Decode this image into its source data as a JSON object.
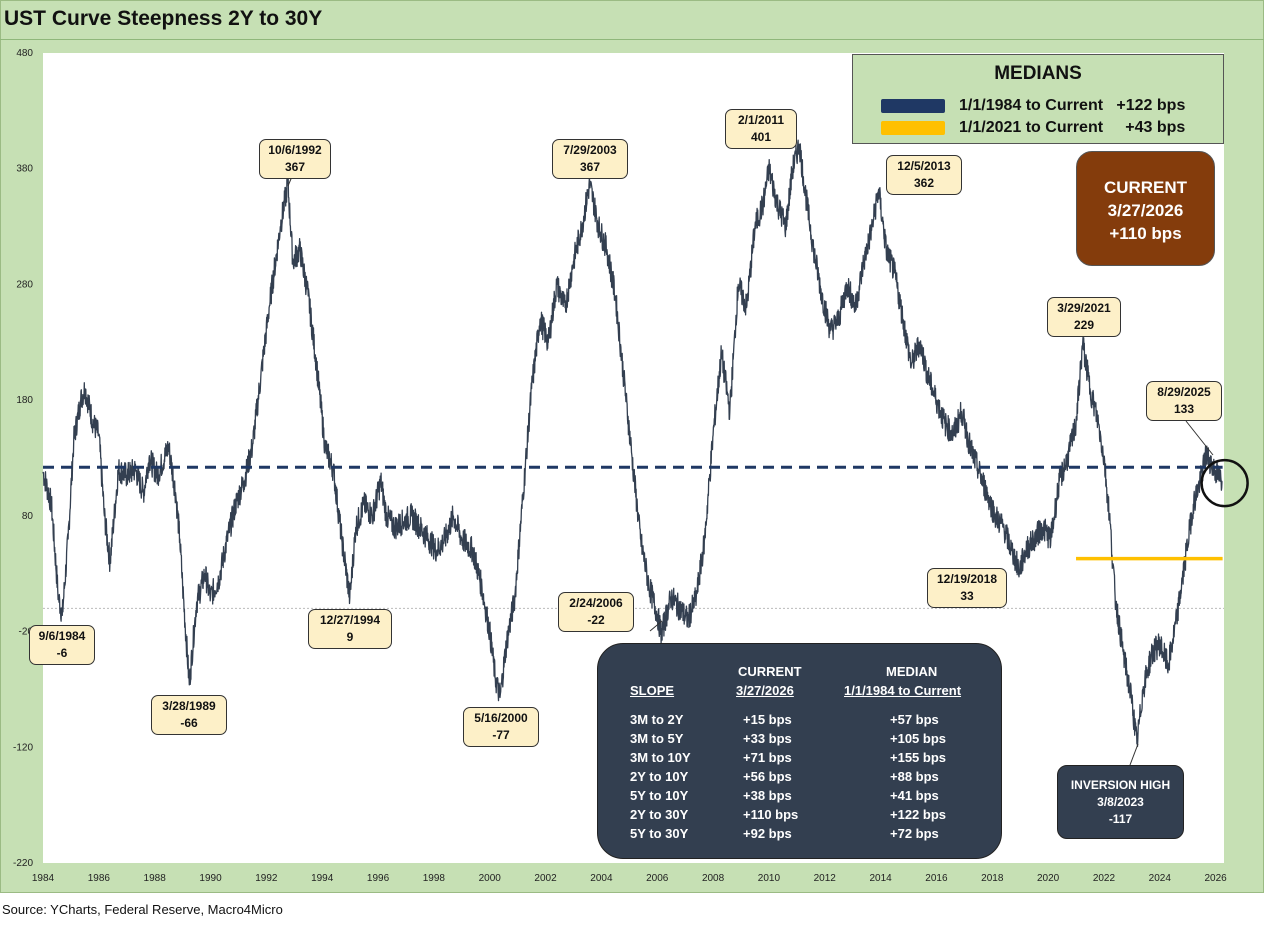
{
  "title": "UST Curve Steepness 2Y to 30Y",
  "source": "Source: YCharts, Federal Reserve, Macro4Micro",
  "colors": {
    "background": "#c6e0b4",
    "series": "#333f50",
    "median_full": "#1f3864",
    "median_recent": "#ffc000",
    "annotation_fill": "#fdf0c8",
    "current_box": "#843c0c",
    "table_box": "#333f50"
  },
  "medians_legend": {
    "title": "MEDIANS",
    "rows": [
      {
        "label": "1/1/1984 to Current",
        "value": "+122 bps",
        "color": "#1f3864"
      },
      {
        "label": "1/1/2021 to Current",
        "value": "+43 bps",
        "color": "#ffc000"
      }
    ]
  },
  "current_box": {
    "line1": "CURRENT",
    "line2": "3/27/2026",
    "line3": "+110 bps"
  },
  "inversion_box": {
    "line1": "INVERSION HIGH",
    "line2": "3/8/2023",
    "line3": "-117"
  },
  "slope_table": {
    "headers": {
      "col1": "SLOPE",
      "col2_top": "CURRENT",
      "col2_bottom": "3/27/2026",
      "col3_top": "MEDIAN",
      "col3_bottom": "1/1/1984 to Current"
    },
    "rows": [
      {
        "slope": "3M to 2Y",
        "current": "+15 bps",
        "median": "+57 bps"
      },
      {
        "slope": "3M to 5Y",
        "current": "+33 bps",
        "median": "+105 bps"
      },
      {
        "slope": "3M to 10Y",
        "current": "+71 bps",
        "median": "+155 bps"
      },
      {
        "slope": "2Y to 10Y",
        "current": "+56 bps",
        "median": "+88 bps"
      },
      {
        "slope": "5Y to 10Y",
        "current": "+38 bps",
        "median": "+41 bps"
      },
      {
        "slope": "2Y to 30Y",
        "current": "+110 bps",
        "median": "+122 bps"
      },
      {
        "slope": "5Y to 30Y",
        "current": "+92 bps",
        "median": "+72 bps"
      }
    ]
  },
  "annotations": [
    {
      "date": "9/6/1984",
      "value": "-6"
    },
    {
      "date": "3/28/1989",
      "value": "-66"
    },
    {
      "date": "10/6/1992",
      "value": "367"
    },
    {
      "date": "12/27/1994",
      "value": "9"
    },
    {
      "date": "5/16/2000",
      "value": "-77"
    },
    {
      "date": "7/29/2003",
      "value": "367"
    },
    {
      "date": "2/24/2006",
      "value": "-22"
    },
    {
      "date": "2/1/2011",
      "value": "401"
    },
    {
      "date": "12/5/2013",
      "value": "362"
    },
    {
      "date": "12/19/2018",
      "value": "33"
    },
    {
      "date": "3/29/2021",
      "value": "229"
    },
    {
      "date": "8/29/2025",
      "value": "133"
    }
  ],
  "chart_data": {
    "type": "line",
    "title": "UST Curve Steepness 2Y to 30Y",
    "xlabel": "",
    "ylabel": "",
    "xlim": [
      1984,
      2026.3
    ],
    "ylim": [
      -220,
      480
    ],
    "x_ticks": [
      "1984",
      "1986",
      "1988",
      "1990",
      "1992",
      "1994",
      "1996",
      "1998",
      "2000",
      "2002",
      "2004",
      "2006",
      "2008",
      "2010",
      "2012",
      "2014",
      "2016",
      "2018",
      "2020",
      "2022",
      "2024",
      "2026"
    ],
    "y_ticks": [
      -220,
      -120,
      -20,
      80,
      180,
      280,
      380,
      480
    ],
    "zero_line": 0,
    "medians": [
      {
        "name": "1/1/1984 to Current",
        "value": 122,
        "x_start": 1984,
        "x_end": 2026.25
      },
      {
        "name": "1/1/2021 to Current",
        "value": 43,
        "x_start": 2021.0,
        "x_end": 2026.25
      }
    ],
    "current": {
      "date": "3/27/2026",
      "value": 110
    },
    "series": [
      {
        "values": [
          [
            1984.0,
            118
          ],
          [
            1984.3,
            90
          ],
          [
            1984.55,
            10
          ],
          [
            1984.69,
            -6
          ],
          [
            1984.9,
            60
          ],
          [
            1985.1,
            145
          ],
          [
            1985.35,
            180
          ],
          [
            1985.5,
            190
          ],
          [
            1985.8,
            160
          ],
          [
            1986.0,
            150
          ],
          [
            1986.2,
            80
          ],
          [
            1986.4,
            40
          ],
          [
            1986.7,
            120
          ],
          [
            1987.0,
            115
          ],
          [
            1987.3,
            120
          ],
          [
            1987.6,
            100
          ],
          [
            1987.8,
            130
          ],
          [
            1988.1,
            115
          ],
          [
            1988.5,
            140
          ],
          [
            1988.75,
            100
          ],
          [
            1988.9,
            60
          ],
          [
            1989.0,
            20
          ],
          [
            1989.24,
            -66
          ],
          [
            1989.5,
            5
          ],
          [
            1989.8,
            30
          ],
          [
            1990.0,
            10
          ],
          [
            1990.3,
            25
          ],
          [
            1990.6,
            60
          ],
          [
            1990.9,
            90
          ],
          [
            1991.2,
            110
          ],
          [
            1991.5,
            140
          ],
          [
            1991.8,
            200
          ],
          [
            1992.1,
            260
          ],
          [
            1992.5,
            330
          ],
          [
            1992.77,
            367
          ],
          [
            1992.95,
            300
          ],
          [
            1993.2,
            310
          ],
          [
            1993.5,
            270
          ],
          [
            1993.8,
            210
          ],
          [
            1994.1,
            140
          ],
          [
            1994.4,
            120
          ],
          [
            1994.7,
            60
          ],
          [
            1994.99,
            9
          ],
          [
            1995.2,
            70
          ],
          [
            1995.5,
            90
          ],
          [
            1995.8,
            80
          ],
          [
            1996.1,
            110
          ],
          [
            1996.3,
            80
          ],
          [
            1996.6,
            70
          ],
          [
            1996.9,
            75
          ],
          [
            1997.2,
            80
          ],
          [
            1997.5,
            70
          ],
          [
            1997.8,
            60
          ],
          [
            1998.1,
            50
          ],
          [
            1998.4,
            60
          ],
          [
            1998.7,
            80
          ],
          [
            1999.0,
            60
          ],
          [
            1999.4,
            50
          ],
          [
            1999.7,
            20
          ],
          [
            2000.0,
            -20
          ],
          [
            2000.2,
            -60
          ],
          [
            2000.37,
            -77
          ],
          [
            2000.6,
            -30
          ],
          [
            2000.9,
            10
          ],
          [
            2001.2,
            100
          ],
          [
            2001.5,
            190
          ],
          [
            2001.8,
            250
          ],
          [
            2002.1,
            230
          ],
          [
            2002.4,
            280
          ],
          [
            2002.7,
            260
          ],
          [
            2003.0,
            300
          ],
          [
            2003.3,
            330
          ],
          [
            2003.58,
            367
          ],
          [
            2003.9,
            330
          ],
          [
            2004.2,
            310
          ],
          [
            2004.5,
            270
          ],
          [
            2004.8,
            200
          ],
          [
            2005.1,
            130
          ],
          [
            2005.4,
            60
          ],
          [
            2005.7,
            20
          ],
          [
            2006.0,
            -5
          ],
          [
            2006.15,
            -22
          ],
          [
            2006.5,
            10
          ],
          [
            2006.8,
            0
          ],
          [
            2007.1,
            -10
          ],
          [
            2007.4,
            10
          ],
          [
            2007.7,
            60
          ],
          [
            2008.0,
            150
          ],
          [
            2008.3,
            220
          ],
          [
            2008.6,
            170
          ],
          [
            2008.9,
            280
          ],
          [
            2009.2,
            260
          ],
          [
            2009.5,
            330
          ],
          [
            2009.8,
            350
          ],
          [
            2010.0,
            380
          ],
          [
            2010.3,
            350
          ],
          [
            2010.6,
            330
          ],
          [
            2010.85,
            380
          ],
          [
            2011.09,
            401
          ],
          [
            2011.3,
            360
          ],
          [
            2011.6,
            310
          ],
          [
            2011.9,
            270
          ],
          [
            2012.2,
            240
          ],
          [
            2012.5,
            250
          ],
          [
            2012.8,
            280
          ],
          [
            2013.1,
            260
          ],
          [
            2013.4,
            300
          ],
          [
            2013.7,
            330
          ],
          [
            2013.93,
            362
          ],
          [
            2014.2,
            310
          ],
          [
            2014.5,
            290
          ],
          [
            2014.8,
            250
          ],
          [
            2015.1,
            210
          ],
          [
            2015.4,
            230
          ],
          [
            2015.7,
            200
          ],
          [
            2016.0,
            180
          ],
          [
            2016.3,
            160
          ],
          [
            2016.6,
            150
          ],
          [
            2016.9,
            170
          ],
          [
            2017.2,
            140
          ],
          [
            2017.5,
            120
          ],
          [
            2017.8,
            100
          ],
          [
            2018.1,
            80
          ],
          [
            2018.4,
            70
          ],
          [
            2018.7,
            50
          ],
          [
            2018.97,
            33
          ],
          [
            2019.2,
            50
          ],
          [
            2019.5,
            60
          ],
          [
            2019.8,
            70
          ],
          [
            2020.1,
            60
          ],
          [
            2020.4,
            110
          ],
          [
            2020.7,
            130
          ],
          [
            2021.0,
            160
          ],
          [
            2021.24,
            229
          ],
          [
            2021.5,
            190
          ],
          [
            2021.8,
            160
          ],
          [
            2022.0,
            130
          ],
          [
            2022.2,
            80
          ],
          [
            2022.4,
            10
          ],
          [
            2022.7,
            -40
          ],
          [
            2023.0,
            -80
          ],
          [
            2023.18,
            -117
          ],
          [
            2023.4,
            -70
          ],
          [
            2023.7,
            -40
          ],
          [
            2024.0,
            -30
          ],
          [
            2024.3,
            -50
          ],
          [
            2024.6,
            -10
          ],
          [
            2024.9,
            40
          ],
          [
            2025.2,
            90
          ],
          [
            2025.45,
            110
          ],
          [
            2025.66,
            133
          ],
          [
            2025.85,
            125
          ],
          [
            2026.0,
            118
          ],
          [
            2026.24,
            110
          ]
        ]
      }
    ]
  }
}
